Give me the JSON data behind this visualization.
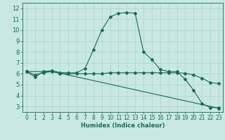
{
  "xlabel": "Humidex (Indice chaleur)",
  "x_ticks": [
    0,
    1,
    2,
    3,
    4,
    5,
    6,
    7,
    8,
    9,
    10,
    11,
    12,
    13,
    14,
    15,
    16,
    17,
    18,
    19,
    20,
    21,
    22,
    23
  ],
  "xlim": [
    -0.5,
    23.5
  ],
  "ylim": [
    2.5,
    12.5
  ],
  "y_ticks": [
    3,
    4,
    5,
    6,
    7,
    8,
    9,
    10,
    11,
    12
  ],
  "bg_color": "#c8e8e0",
  "grid_color": "#b0d8cf",
  "line_color": "#1a6b5a",
  "line1_x": [
    0,
    1,
    2,
    3,
    4,
    5,
    6,
    7,
    8,
    9,
    10,
    11,
    12,
    13,
    14,
    15,
    16,
    17,
    18,
    19,
    20,
    21,
    22,
    23
  ],
  "line1_y": [
    6.2,
    5.7,
    6.2,
    6.3,
    6.1,
    6.1,
    6.1,
    6.5,
    8.2,
    10.0,
    11.2,
    11.55,
    11.6,
    11.55,
    8.0,
    7.3,
    6.4,
    6.2,
    6.2,
    5.5,
    4.5,
    3.3,
    2.9,
    2.9
  ],
  "line2_x": [
    0,
    1,
    2,
    3,
    4,
    5,
    6,
    7,
    8,
    9,
    10,
    11,
    12,
    13,
    14,
    15,
    16,
    17,
    18,
    19,
    20,
    21,
    22,
    23
  ],
  "line2_y": [
    6.2,
    5.9,
    6.1,
    6.2,
    6.05,
    6.0,
    6.0,
    6.0,
    6.0,
    6.0,
    6.1,
    6.1,
    6.1,
    6.1,
    6.1,
    6.1,
    6.1,
    6.1,
    6.1,
    6.05,
    5.9,
    5.6,
    5.2,
    5.1
  ],
  "line3_x": [
    0,
    3,
    4,
    23
  ],
  "line3_y": [
    6.2,
    6.2,
    6.05,
    2.85
  ],
  "xlabel_fontsize": 6.0,
  "tick_fontsize": 5.5
}
